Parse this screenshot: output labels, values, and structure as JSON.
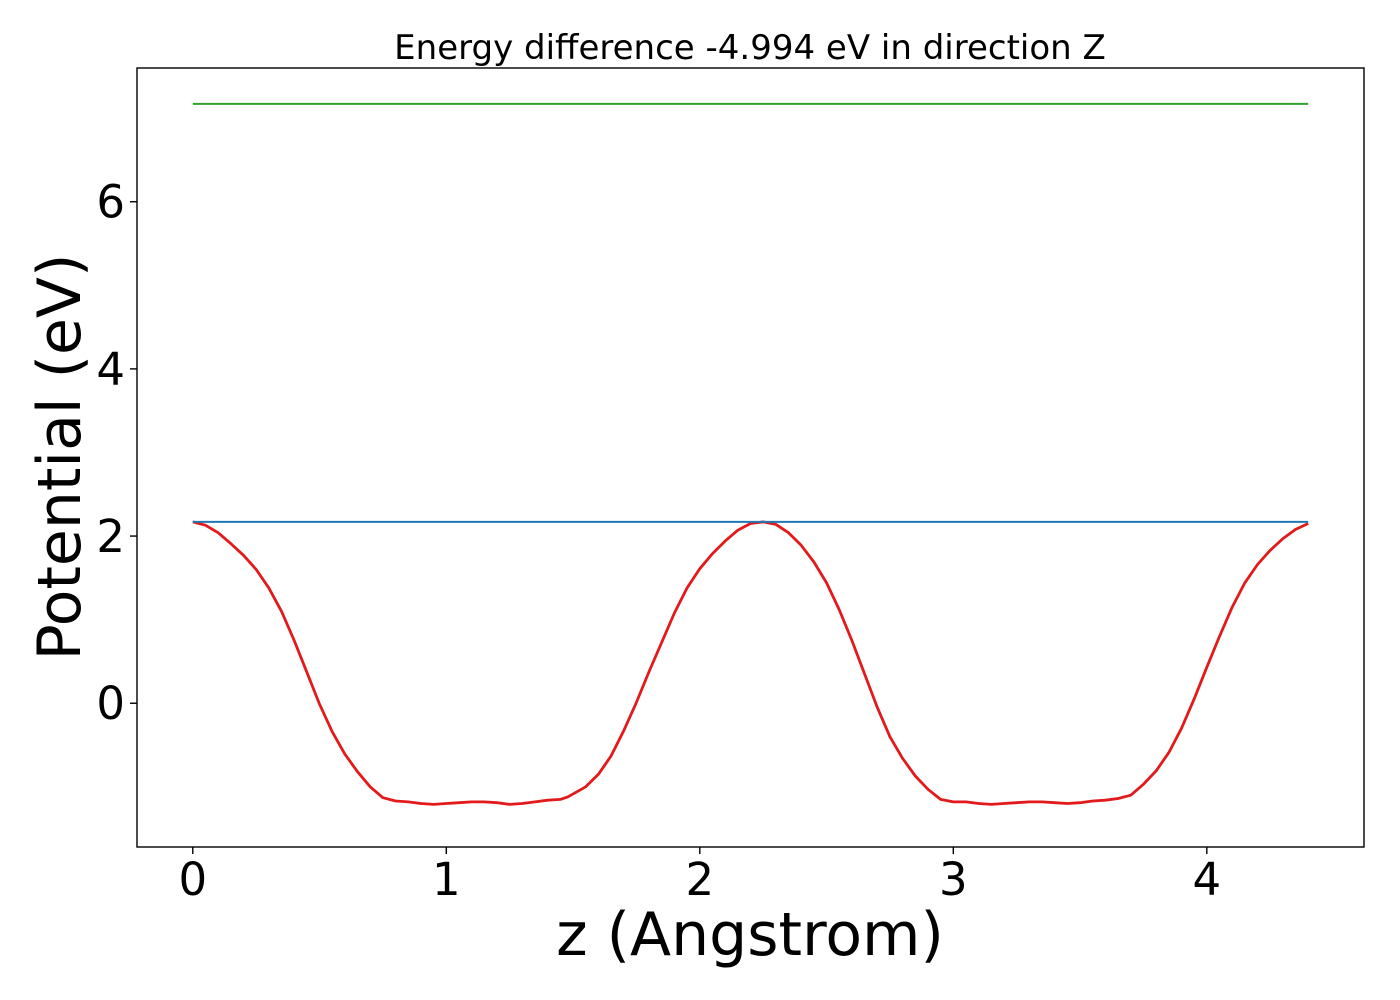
{
  "chart_data": {
    "type": "line",
    "title": "Energy difference -4.994 eV in direction Z",
    "xlabel": "z (Angstrom)",
    "ylabel": "Potential (eV)",
    "xlim": [
      -0.22,
      4.62
    ],
    "ylim": [
      -1.72,
      7.6
    ],
    "xticks": [
      0,
      1,
      2,
      3,
      4
    ],
    "yticks": [
      0,
      2,
      4,
      6
    ],
    "grid": false,
    "legend": "none",
    "colors": {
      "potential": "#e31a1c",
      "average": "#1f78b4",
      "vacuum": "#33a02c"
    },
    "series": [
      {
        "role": "potential",
        "x": [
          0,
          0.05,
          0.1,
          0.15,
          0.2,
          0.25,
          0.3,
          0.35,
          0.4,
          0.45,
          0.5,
          0.55,
          0.6,
          0.65,
          0.7,
          0.75,
          0.8,
          0.85,
          0.9,
          0.95,
          1.0,
          1.05,
          1.1,
          1.15,
          1.2,
          1.25,
          1.3,
          1.35,
          1.4,
          1.45,
          1.48,
          1.55,
          1.6,
          1.65,
          1.7,
          1.75,
          1.8,
          1.85,
          1.9,
          1.95,
          2.0,
          2.05,
          2.1,
          2.15,
          2.2,
          2.25,
          2.3,
          2.35,
          2.4,
          2.45,
          2.5,
          2.55,
          2.6,
          2.65,
          2.7,
          2.75,
          2.8,
          2.85,
          2.9,
          2.95,
          3.0,
          3.05,
          3.1,
          3.15,
          3.2,
          3.25,
          3.3,
          3.35,
          3.4,
          3.45,
          3.5,
          3.55,
          3.6,
          3.65,
          3.7,
          3.75,
          3.8,
          3.85,
          3.9,
          3.95,
          4.0,
          4.05,
          4.1,
          4.15,
          4.2,
          4.25,
          4.3,
          4.35,
          4.4
        ],
        "y": [
          2.17,
          2.13,
          2.04,
          1.91,
          1.77,
          1.6,
          1.38,
          1.1,
          0.75,
          0.37,
          -0.01,
          -0.34,
          -0.61,
          -0.82,
          -1.0,
          -1.13,
          -1.17,
          -1.18,
          -1.2,
          -1.21,
          -1.2,
          -1.19,
          -1.18,
          -1.18,
          -1.19,
          -1.21,
          -1.2,
          -1.18,
          -1.16,
          -1.15,
          -1.12,
          -1.0,
          -0.85,
          -0.63,
          -0.33,
          0.01,
          0.38,
          0.73,
          1.08,
          1.38,
          1.61,
          1.79,
          1.94,
          2.07,
          2.15,
          2.17,
          2.14,
          2.04,
          1.89,
          1.69,
          1.44,
          1.12,
          0.75,
          0.35,
          -0.05,
          -0.4,
          -0.66,
          -0.87,
          -1.03,
          -1.15,
          -1.18,
          -1.18,
          -1.2,
          -1.21,
          -1.2,
          -1.19,
          -1.18,
          -1.18,
          -1.19,
          -1.2,
          -1.19,
          -1.17,
          -1.16,
          -1.14,
          -1.1,
          -0.97,
          -0.81,
          -0.59,
          -0.3,
          0.05,
          0.43,
          0.8,
          1.15,
          1.44,
          1.66,
          1.83,
          1.97,
          2.08,
          2.15
        ]
      },
      {
        "role": "average",
        "x": [
          0,
          4.4
        ],
        "y": [
          2.17,
          2.17
        ]
      },
      {
        "role": "vacuum",
        "x": [
          0,
          4.4
        ],
        "y": [
          7.17,
          7.17
        ]
      }
    ]
  }
}
